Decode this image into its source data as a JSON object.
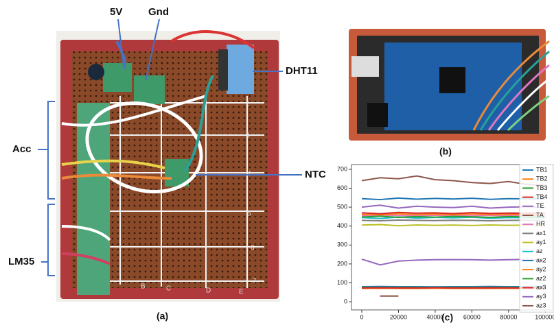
{
  "figure": {
    "callouts": [
      "5V",
      "Gnd",
      "DHT11",
      "Acc",
      "NTC",
      "LM35"
    ],
    "captions": [
      "(a)",
      "(b)",
      "(c)"
    ],
    "board": {
      "rows": [
        "2",
        "3",
        "4",
        "5",
        "6",
        "7"
      ],
      "columns": [
        "B",
        "C",
        "D",
        "E"
      ]
    }
  },
  "chart_data": {
    "type": "line",
    "legend": "upper right",
    "x": [
      0,
      10000,
      20000,
      30000,
      40000,
      50000,
      60000,
      70000,
      80000,
      90000,
      100000
    ],
    "xlim": [
      -5600,
      104000
    ],
    "xticks": [
      0,
      20000,
      40000,
      60000,
      80000,
      100000
    ],
    "ylim": [
      -43,
      725
    ],
    "yticks": [
      0,
      100,
      200,
      300,
      400,
      500,
      600,
      700
    ],
    "series": [
      {
        "name": "TB1",
        "color": "#1f77b4",
        "values": [
          80,
          81,
          80,
          80,
          79,
          80,
          80,
          81,
          80,
          80,
          81
        ]
      },
      {
        "name": "TB2",
        "color": "#ff7f0e",
        "values": [
          70,
          71,
          70,
          70,
          71,
          70,
          70,
          70,
          71,
          70,
          70
        ]
      },
      {
        "name": "TB3",
        "color": "#2ca02c",
        "values": [
          76,
          75,
          76,
          76,
          75,
          76,
          76,
          75,
          76,
          76,
          75
        ]
      },
      {
        "name": "TB4",
        "color": "#d62728",
        "values": [
          73,
          74,
          73,
          73,
          74,
          73,
          73,
          74,
          73,
          73,
          74
        ]
      },
      {
        "name": "TE",
        "color": "#9467bd",
        "values": [
          225,
          195,
          215,
          220,
          222,
          223,
          222,
          220,
          222,
          224,
          215
        ]
      },
      {
        "name": "TA",
        "color": "#8c564b",
        "values": [
          null,
          30,
          30,
          null,
          null,
          null,
          null,
          null,
          null,
          null,
          null
        ]
      },
      {
        "name": "HR",
        "color": "#e377c2",
        "values": [
          455,
          458,
          456,
          455,
          457,
          456,
          455,
          457,
          455,
          456,
          455
        ]
      },
      {
        "name": "ax1",
        "color": "#7f7f7f",
        "values": [
          430,
          428,
          432,
          430,
          429,
          431,
          430,
          428,
          430,
          431,
          429
        ]
      },
      {
        "name": "ay1",
        "color": "#bcbd22",
        "values": [
          405,
          408,
          402,
          406,
          404,
          405,
          403,
          406,
          404,
          405,
          404
        ]
      },
      {
        "name": "az",
        "color": "#17becf",
        "values": [
          445,
          440,
          448,
          442,
          446,
          443,
          447,
          441,
          445,
          444,
          443
        ]
      },
      {
        "name": "ax2",
        "color": "#1f77b4",
        "values": [
          545,
          540,
          548,
          542,
          546,
          543,
          547,
          541,
          545,
          544,
          543
        ]
      },
      {
        "name": "ay2",
        "color": "#ff7f0e",
        "values": [
          462,
          460,
          465,
          461,
          463,
          460,
          464,
          461,
          462,
          463,
          460
        ]
      },
      {
        "name": "az2",
        "color": "#2ca02c",
        "values": [
          448,
          452,
          446,
          450,
          447,
          451,
          449,
          446,
          450,
          448,
          449
        ]
      },
      {
        "name": "ax3",
        "color": "#d62728",
        "values": [
          470,
          465,
          472,
          468,
          470,
          466,
          471,
          467,
          469,
          468,
          470
        ]
      },
      {
        "name": "ay3",
        "color": "#9467bd",
        "values": [
          500,
          510,
          495,
          505,
          500,
          498,
          505,
          495,
          500,
          502,
          498
        ]
      },
      {
        "name": "az3",
        "color": "#8c564b",
        "values": [
          640,
          655,
          650,
          665,
          645,
          640,
          630,
          625,
          635,
          620,
          615
        ]
      }
    ]
  }
}
